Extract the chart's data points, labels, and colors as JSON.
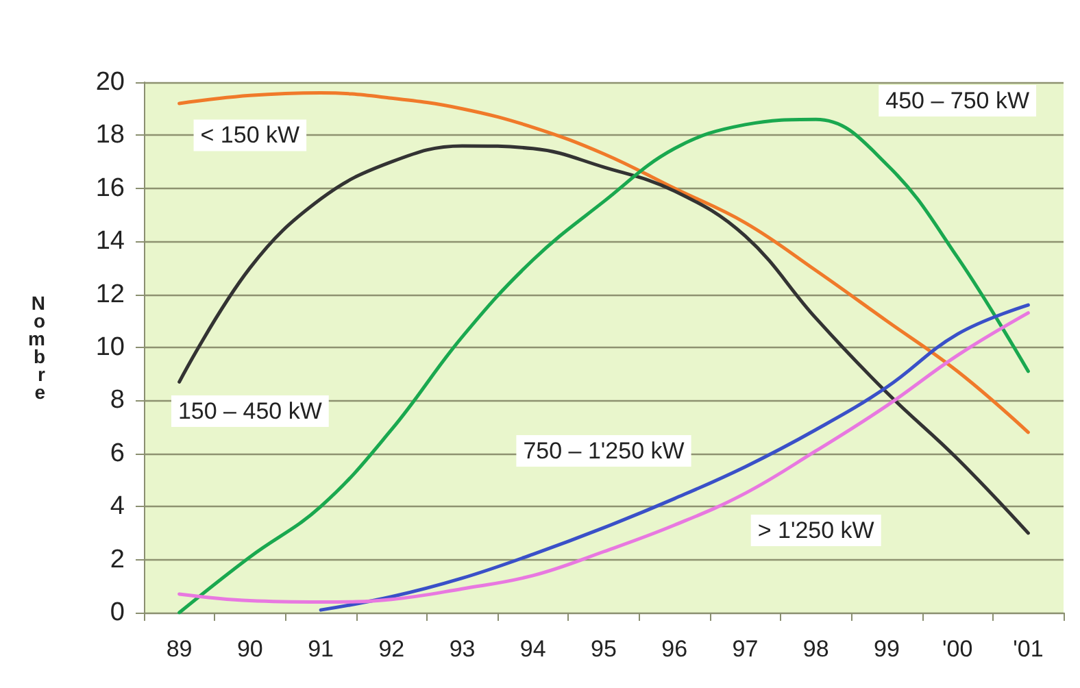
{
  "chart_data": {
    "type": "line",
    "ylabel": "Nombre",
    "categories": [
      "89",
      "90",
      "91",
      "92",
      "93",
      "94",
      "95",
      "96",
      "97",
      "98",
      "99",
      "'00",
      "'01"
    ],
    "series": [
      {
        "name": "< 150 kW",
        "color": "#f07a2a",
        "values": [
          19.2,
          19.5,
          19.6,
          19.4,
          19.0,
          18.3,
          17.3,
          16.0,
          14.7,
          12.9,
          11.0,
          9.1,
          6.8
        ]
      },
      {
        "name": "150 – 450 kW",
        "color": "#333333",
        "values": [
          8.7,
          13.0,
          15.6,
          17.0,
          17.6,
          17.5,
          16.8,
          15.9,
          14.2,
          11.1,
          8.3,
          5.8,
          3.0
        ]
      },
      {
        "name": "450 – 750 kW",
        "color": "#1aa84f",
        "values": [
          0,
          2.1,
          4.0,
          6.9,
          10.4,
          13.3,
          15.5,
          17.5,
          18.4,
          18.6,
          16.9,
          13.4,
          9.1
        ]
      },
      {
        "name": "750 – 1'250 kW",
        "color": "#3a50c8",
        "values": [
          null,
          null,
          0.1,
          0.6,
          1.3,
          2.2,
          3.2,
          4.3,
          5.5,
          6.9,
          8.5,
          10.5,
          11.6
        ]
      },
      {
        "name": "> 1'250 kW",
        "color": "#e878e0",
        "values": [
          0.7,
          0.45,
          0.4,
          0.5,
          0.9,
          1.4,
          2.3,
          3.3,
          4.5,
          6.1,
          7.8,
          9.7,
          11.3
        ]
      }
    ],
    "ylim": [
      0,
      20
    ],
    "yticks": [
      0,
      2,
      4,
      6,
      8,
      10,
      12,
      14,
      16,
      18,
      20
    ],
    "grid": "y",
    "marker": "none",
    "line_style": "solid"
  }
}
